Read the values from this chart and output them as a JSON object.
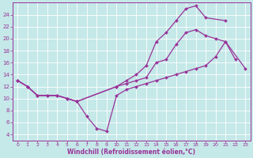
{
  "xlabel": "Windchill (Refroidissement éolien,°C)",
  "bg_color": "#c5e8e8",
  "line_color": "#993399",
  "grid_color": "#b0d8d8",
  "xlim": [
    -0.5,
    23.5
  ],
  "ylim": [
    3,
    26
  ],
  "xticks": [
    0,
    1,
    2,
    3,
    4,
    5,
    6,
    7,
    8,
    9,
    10,
    11,
    12,
    13,
    14,
    15,
    16,
    17,
    18,
    19,
    20,
    21,
    22,
    23
  ],
  "yticks": [
    4,
    6,
    8,
    10,
    12,
    14,
    16,
    18,
    20,
    22,
    24
  ],
  "curves": [
    {
      "x": [
        0,
        1,
        2,
        3,
        4,
        5,
        6,
        7,
        8,
        9,
        10,
        11,
        12,
        13,
        14,
        15,
        16,
        17,
        18,
        19,
        20,
        21,
        23
      ],
      "y": [
        13,
        12,
        10.5,
        10.5,
        10.5,
        10,
        9.5,
        7,
        5,
        4.5,
        10.5,
        11.5,
        12,
        12.5,
        13,
        13.5,
        14,
        14.5,
        15,
        15.5,
        17,
        19.5,
        15
      ]
    },
    {
      "x": [
        0,
        1,
        2,
        3,
        4,
        5,
        6,
        10,
        11,
        12,
        13,
        14,
        15,
        16,
        17,
        18,
        19,
        20,
        21,
        22
      ],
      "y": [
        13,
        12,
        10.5,
        10.5,
        10.5,
        10,
        9.5,
        12,
        12.5,
        13,
        13.5,
        16,
        16.5,
        19,
        21,
        21.5,
        20.5,
        20,
        19.5,
        16.5
      ]
    },
    {
      "x": [
        0,
        1,
        2,
        3,
        4,
        5,
        6,
        10,
        11,
        12,
        13,
        14,
        15,
        16,
        17,
        18,
        19,
        21
      ],
      "y": [
        13,
        12,
        10.5,
        10.5,
        10.5,
        10,
        9.5,
        12,
        13,
        14,
        15.5,
        19.5,
        21,
        23,
        25,
        25.5,
        23.5,
        23
      ]
    }
  ]
}
